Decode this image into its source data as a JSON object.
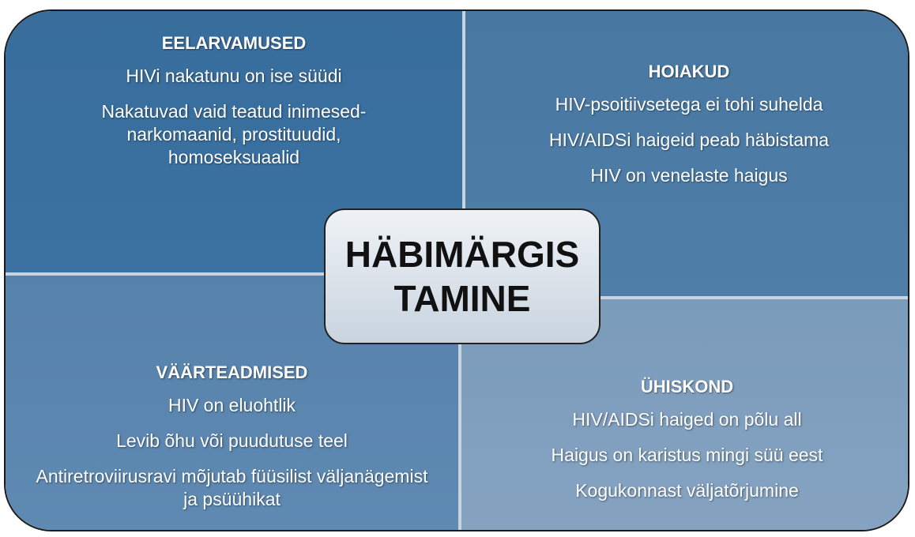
{
  "center": {
    "lines": [
      "HÄBIMÄRGIS",
      "TAMINE"
    ]
  },
  "quadrants": [
    {
      "title": "EELARVAMUSED",
      "items": [
        "HIVi nakatunu on ise süüdi",
        "Nakatuvad vaid teatud inimesed-narkomaanid, prostituudid, homoseksuaalid"
      ]
    },
    {
      "title": "HOIAKUD",
      "items": [
        "HIV-psoitiivsetega ei tohi suhelda",
        "HIV/AIDSi haigeid peab häbistama",
        "HIV on venelaste haigus"
      ]
    },
    {
      "title": "VÄÄRTEADMISED",
      "items": [
        "HIV on eluohtlik",
        "Levib õhu või puudutuse teel",
        "Antiretroviirusravi mõjutab füüsilist väljanägemist ja psüühikat"
      ]
    },
    {
      "title": "ÜHISKOND",
      "items": [
        "HIV/AIDSi haiged on põlu all",
        "Haigus on karistus mingi süü eest",
        "Kogukonnast väljatõrjumine"
      ]
    }
  ]
}
